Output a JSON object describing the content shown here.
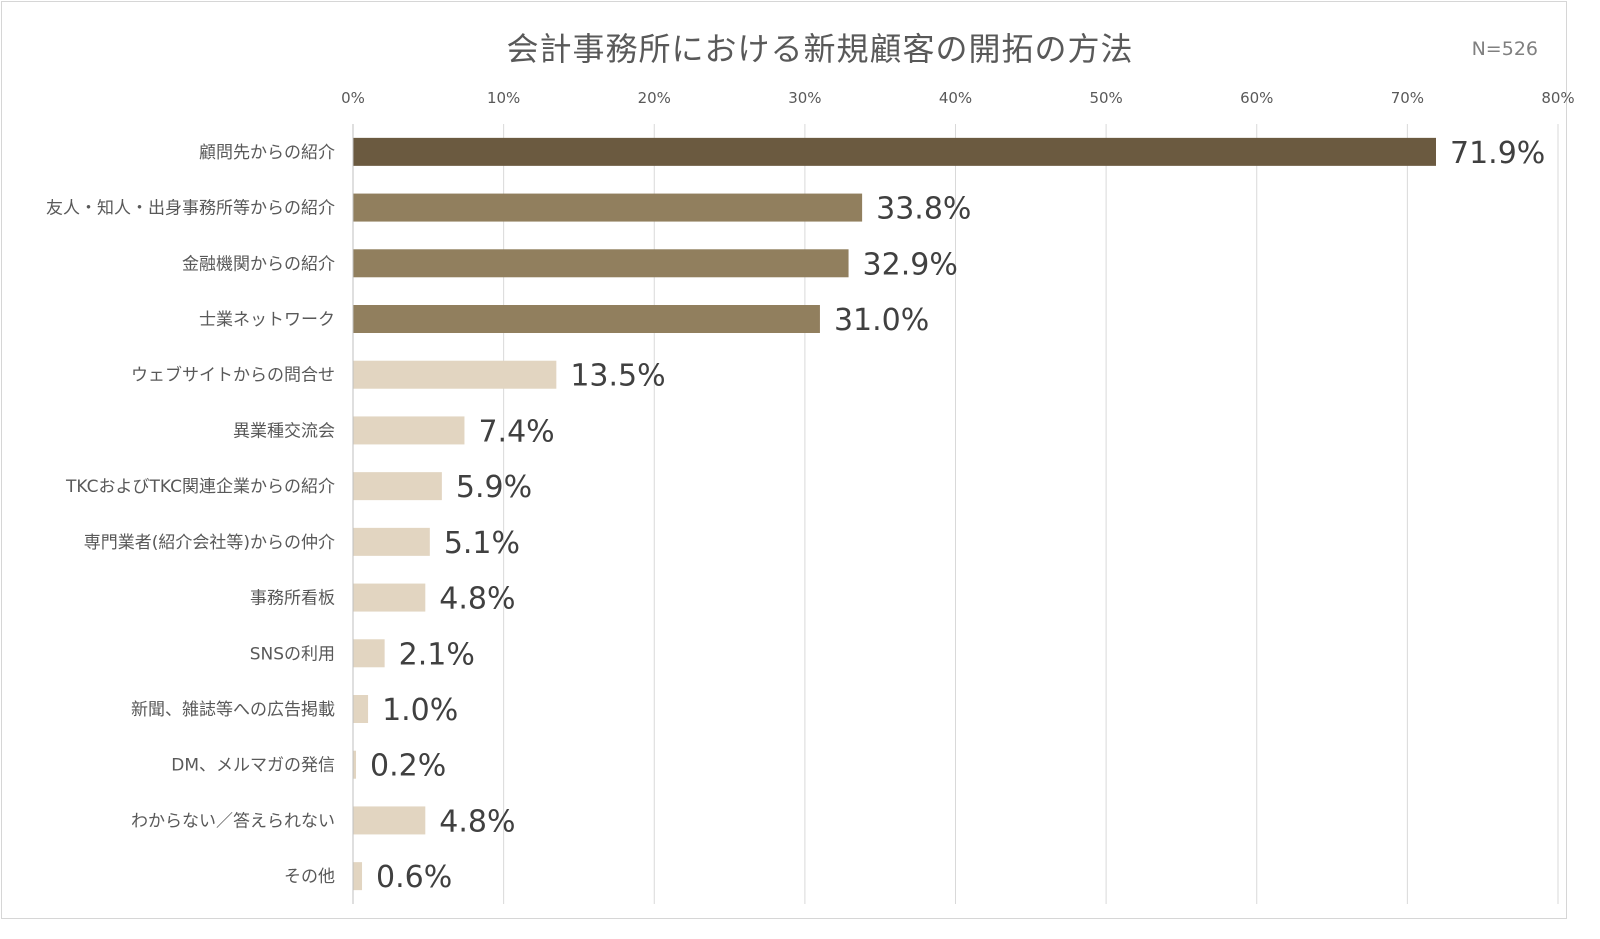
{
  "chart_data": {
    "type": "bar",
    "orientation": "horizontal",
    "title": "会計事務所における新規顧客の開拓の方法",
    "note": "N=526",
    "xlim": [
      0,
      80
    ],
    "x_ticks": [
      "0%",
      "10%",
      "20%",
      "30%",
      "40%",
      "50%",
      "60%",
      "70%",
      "80%"
    ],
    "grid": true,
    "categories": [
      "顧問先からの紹介",
      "友人・知人・出身事務所等からの紹介",
      "金融機関からの紹介",
      "士業ネットワーク",
      "ウェブサイトからの問合せ",
      "異業種交流会",
      "TKCおよびTKC関連企業からの紹介",
      "専門業者(紹介会社等)からの仲介",
      "事務所看板",
      "SNSの利用",
      "新聞、雑誌等への広告掲載",
      "DM、メルマガの発信",
      "わからない／答えられない",
      "その他"
    ],
    "values": [
      71.9,
      33.8,
      32.9,
      31.0,
      13.5,
      7.4,
      5.9,
      5.1,
      4.8,
      2.1,
      1.0,
      0.2,
      4.8,
      0.6
    ],
    "value_labels": [
      "71.9%",
      "33.8%",
      "32.9%",
      "31.0%",
      "13.5%",
      "7.4%",
      "5.9%",
      "5.1%",
      "4.8%",
      "2.1%",
      "1.0%",
      "0.2%",
      "4.8%",
      "0.6%"
    ],
    "colors": {
      "top": "#6b5a40",
      "high": "#917f5e",
      "low": "#e2d5c1",
      "grid": "#d9d9d9"
    },
    "color_groups": [
      "top",
      "high",
      "high",
      "high",
      "low",
      "low",
      "low",
      "low",
      "low",
      "low",
      "low",
      "low",
      "low",
      "low"
    ]
  }
}
